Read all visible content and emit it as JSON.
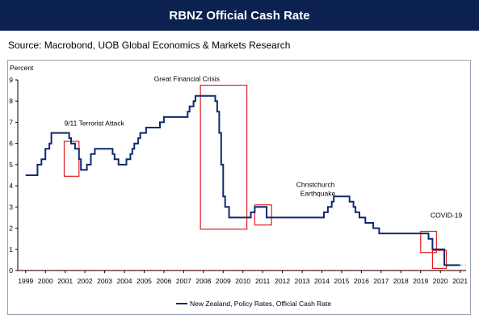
{
  "header": {
    "title": "RBNZ Official Cash Rate"
  },
  "source": "Source: Macrobond, UOB Global Economics & Markets Research",
  "colors": {
    "banner": "#0b2150",
    "line": "#0d2a6e",
    "highlight": "#e02020",
    "forecast": "#b8c4d8"
  },
  "chart_data": {
    "type": "line",
    "title": "",
    "ylabel": "Percent",
    "xlabel": "",
    "ylim": [
      0,
      9
    ],
    "xlim": [
      1998.6,
      2021.3
    ],
    "yticks": [
      0,
      1,
      2,
      3,
      4,
      5,
      6,
      7,
      8,
      9
    ],
    "xticks": [
      "1999",
      "2000",
      "2001",
      "2002",
      "2003",
      "2004",
      "2005",
      "2006",
      "2007",
      "2008",
      "2009",
      "2010",
      "2011",
      "2012",
      "2013",
      "2014",
      "2015",
      "2016",
      "2017",
      "2018",
      "2019",
      "2020",
      "2021"
    ],
    "grid": false,
    "legend_position": "bottom",
    "series": [
      {
        "name": "New Zealand, Policy Rates, Official Cash Rate",
        "style": "step",
        "points": [
          [
            1999.0,
            4.5
          ],
          [
            1999.6,
            5.0
          ],
          [
            1999.8,
            5.25
          ],
          [
            2000.0,
            5.75
          ],
          [
            2000.2,
            6.0
          ],
          [
            2000.3,
            6.5
          ],
          [
            2000.9,
            6.5
          ],
          [
            2001.2,
            6.25
          ],
          [
            2001.3,
            6.0
          ],
          [
            2001.5,
            5.75
          ],
          [
            2001.7,
            5.25
          ],
          [
            2001.8,
            4.75
          ],
          [
            2002.1,
            5.0
          ],
          [
            2002.3,
            5.5
          ],
          [
            2002.5,
            5.75
          ],
          [
            2003.2,
            5.75
          ],
          [
            2003.4,
            5.5
          ],
          [
            2003.5,
            5.25
          ],
          [
            2003.7,
            5.0
          ],
          [
            2004.0,
            5.0
          ],
          [
            2004.1,
            5.25
          ],
          [
            2004.3,
            5.5
          ],
          [
            2004.4,
            5.75
          ],
          [
            2004.5,
            6.0
          ],
          [
            2004.7,
            6.25
          ],
          [
            2004.8,
            6.5
          ],
          [
            2005.1,
            6.75
          ],
          [
            2005.8,
            7.0
          ],
          [
            2006.0,
            7.25
          ],
          [
            2007.2,
            7.5
          ],
          [
            2007.3,
            7.75
          ],
          [
            2007.5,
            8.0
          ],
          [
            2007.6,
            8.25
          ],
          [
            2008.6,
            8.0
          ],
          [
            2008.7,
            7.5
          ],
          [
            2008.8,
            6.5
          ],
          [
            2008.9,
            5.0
          ],
          [
            2009.0,
            3.5
          ],
          [
            2009.1,
            3.0
          ],
          [
            2009.3,
            2.5
          ],
          [
            2010.4,
            2.75
          ],
          [
            2010.6,
            3.0
          ],
          [
            2011.2,
            2.5
          ],
          [
            2014.1,
            2.75
          ],
          [
            2014.3,
            3.0
          ],
          [
            2014.5,
            3.25
          ],
          [
            2014.6,
            3.5
          ],
          [
            2015.4,
            3.25
          ],
          [
            2015.6,
            3.0
          ],
          [
            2015.7,
            2.75
          ],
          [
            2015.9,
            2.5
          ],
          [
            2016.2,
            2.25
          ],
          [
            2016.6,
            2.0
          ],
          [
            2016.9,
            1.75
          ],
          [
            2019.4,
            1.5
          ],
          [
            2019.6,
            1.0
          ],
          [
            2020.2,
            0.25
          ],
          [
            2021.0,
            0.25
          ]
        ]
      },
      {
        "name": "",
        "style": "dashed",
        "points": [
          [
            2021.0,
            0.25
          ],
          [
            2021.3,
            0.25
          ]
        ]
      }
    ],
    "annotations": [
      {
        "label": "9/11 Terrorist Attack",
        "box": {
          "x": [
            2000.95,
            2001.7
          ],
          "y": [
            4.45,
            6.1
          ]
        },
        "label_at": {
          "x": 2000.95,
          "y": 6.85
        }
      },
      {
        "label": "Great Financial Crisis",
        "box": {
          "x": [
            2007.85,
            2010.2
          ],
          "y": [
            1.95,
            8.75
          ]
        },
        "label_at": {
          "x": 2005.5,
          "y": 8.95
        }
      },
      {
        "label": "Christchurch",
        "label2": "Earthquake",
        "box": {
          "x": [
            2010.6,
            2011.45
          ],
          "y": [
            2.15,
            3.1
          ]
        },
        "label_at": {
          "x": 2012.7,
          "y": 3.95
        }
      },
      {
        "label": "COVID-19",
        "box": {
          "x": [
            2019.0,
            2019.8
          ],
          "y": [
            0.85,
            1.85
          ]
        },
        "label_at": {
          "x": 2019.5,
          "y": 2.5
        }
      },
      {
        "label": "",
        "box": {
          "x": [
            2019.6,
            2020.3
          ],
          "y": [
            0.1,
            0.95
          ]
        },
        "label_at": null
      }
    ]
  }
}
